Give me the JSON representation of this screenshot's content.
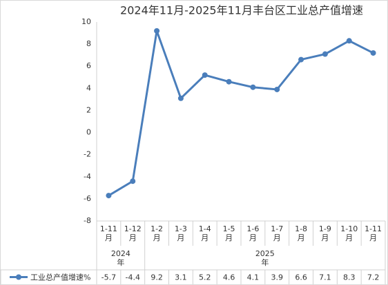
{
  "chart_data": {
    "type": "line",
    "title": "2024年11月-2025年11月丰台区工业总产值增速",
    "categories": [
      "1-11月",
      "1-12月",
      "1-2月",
      "1-3月",
      "1-4月",
      "1-5月",
      "1-6月",
      "1-7月",
      "1-8月",
      "1-9月",
      "1-10月",
      "1-11月"
    ],
    "groups": [
      {
        "label": "2024年",
        "size": 2
      },
      {
        "label": "2025年",
        "size": 10
      }
    ],
    "series": [
      {
        "name": "工业总产值增速%",
        "color": "#4a7ebb",
        "values": [
          -5.7,
          -4.4,
          9.2,
          3.1,
          5.2,
          4.6,
          4.1,
          3.9,
          6.6,
          7.1,
          8.3,
          7.2
        ]
      }
    ],
    "ylim": [
      -8,
      10
    ],
    "yticks": [
      -8,
      -6,
      -4,
      -2,
      0,
      2,
      4,
      6,
      8,
      10
    ],
    "grid": false,
    "legend": "bottom-left"
  }
}
